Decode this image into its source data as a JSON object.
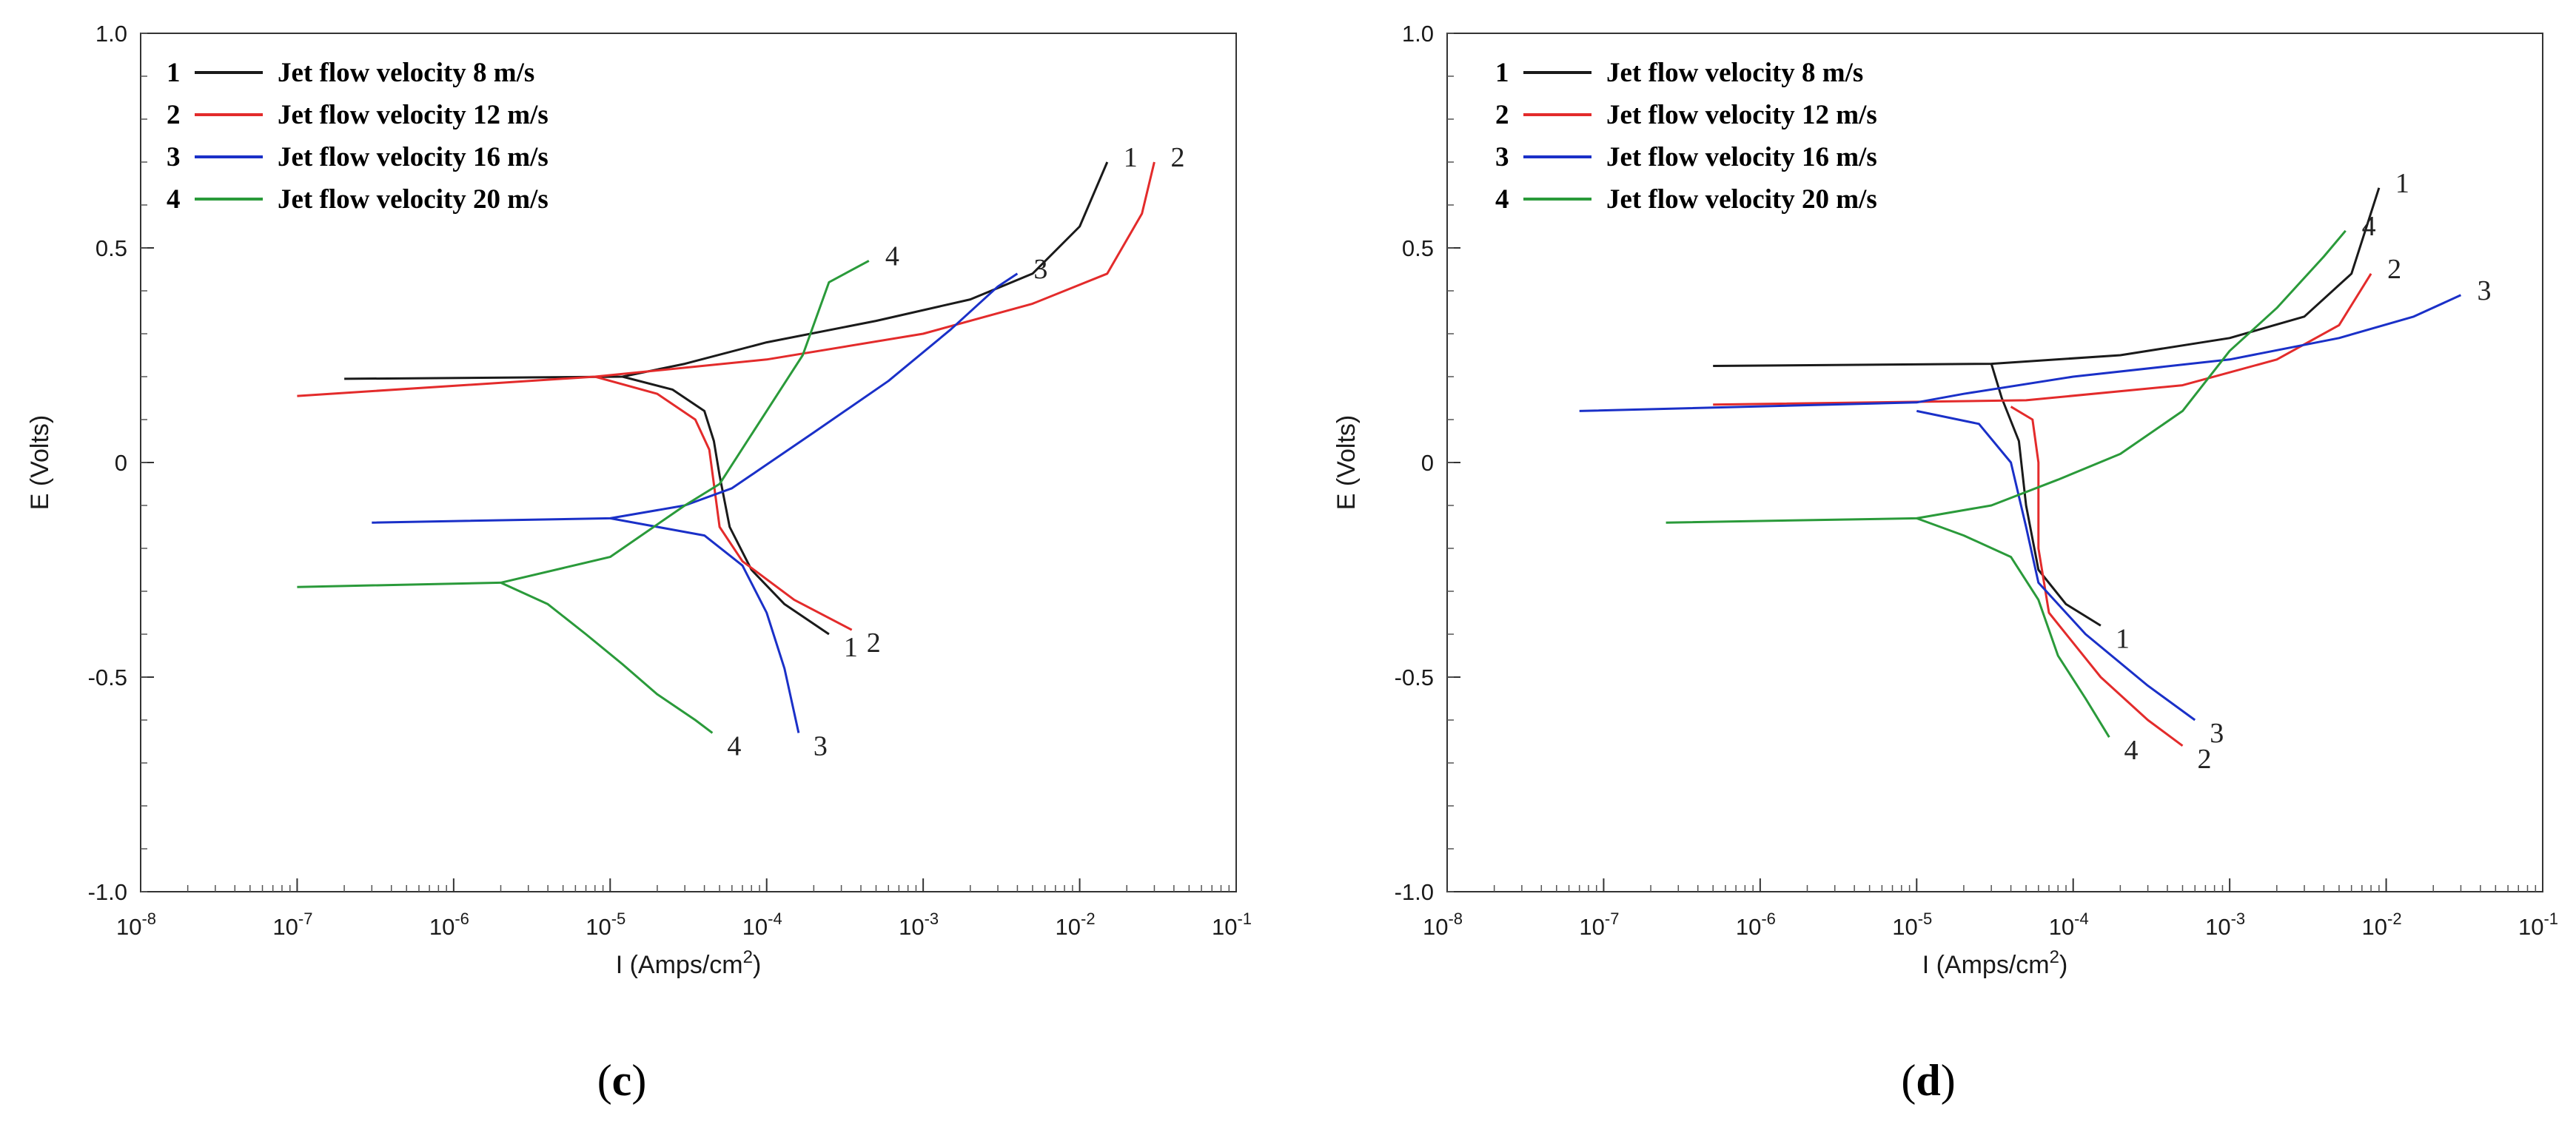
{
  "chart_data": [
    {
      "type": "line",
      "panel_label": "c",
      "xlabel": "I (Amps/cm",
      "xlabel_sup": "2",
      "xlabel_close": ")",
      "ylabel": "E (Volts)",
      "xscale": "log",
      "xlim_exp": [
        -8,
        -1
      ],
      "ylim": [
        -1.0,
        1.0
      ],
      "x_ticks": [
        "-8",
        "-7",
        "-6",
        "-5",
        "-4",
        "-3",
        "-2",
        "-1"
      ],
      "y_ticks": [
        "1.0",
        "0.5",
        "0",
        "-0.5",
        "-1.0"
      ],
      "legend_position": "top-left",
      "series": [
        {
          "id": "1",
          "name": "Jet flow velocity 8 m/s",
          "color": "#1a1a1a",
          "label_anodic": "1",
          "label_cathodic": "1",
          "anodic": [
            [
              2e-07,
              0.195
            ],
            [
              1.2e-05,
              0.2
            ],
            [
              3e-05,
              0.23
            ],
            [
              0.0001,
              0.28
            ],
            [
              0.0005,
              0.33
            ],
            [
              0.002,
              0.38
            ],
            [
              0.005,
              0.44
            ],
            [
              0.01,
              0.55
            ],
            [
              0.015,
              0.7
            ]
          ],
          "cathodic": [
            [
              1.2e-05,
              0.2
            ],
            [
              2.5e-05,
              0.17
            ],
            [
              4e-05,
              0.12
            ],
            [
              4.6e-05,
              0.05
            ],
            [
              5e-05,
              -0.03
            ],
            [
              5.8e-05,
              -0.15
            ],
            [
              8e-05,
              -0.25
            ],
            [
              0.00013,
              -0.33
            ],
            [
              0.00025,
              -0.4
            ]
          ]
        },
        {
          "id": "2",
          "name": "Jet flow velocity 12 m/s",
          "color": "#e32b2b",
          "label_anodic": "2",
          "label_cathodic": "2",
          "anodic": [
            [
              1e-07,
              0.155
            ],
            [
              8e-06,
              0.2
            ],
            [
              0.0001,
              0.24
            ],
            [
              0.001,
              0.3
            ],
            [
              0.005,
              0.37
            ],
            [
              0.015,
              0.44
            ],
            [
              0.025,
              0.58
            ],
            [
              0.03,
              0.7
            ]
          ],
          "cathodic": [
            [
              8e-06,
              0.2
            ],
            [
              2e-05,
              0.16
            ],
            [
              3.5e-05,
              0.1
            ],
            [
              4.3e-05,
              0.03
            ],
            [
              4.6e-05,
              -0.05
            ],
            [
              5e-05,
              -0.15
            ],
            [
              7e-05,
              -0.23
            ],
            [
              0.00015,
              -0.32
            ],
            [
              0.00035,
              -0.39
            ]
          ]
        },
        {
          "id": "3",
          "name": "Jet flow velocity 16 m/s",
          "color": "#1a30c8",
          "label_anodic": "3",
          "label_cathodic": "3",
          "anodic": [
            [
              3e-07,
              -0.14
            ],
            [
              1e-05,
              -0.13
            ],
            [
              3e-05,
              -0.1
            ],
            [
              6e-05,
              -0.06
            ],
            [
              0.0002,
              0.07
            ],
            [
              0.0006,
              0.19
            ],
            [
              0.0015,
              0.31
            ],
            [
              0.003,
              0.41
            ],
            [
              0.004,
              0.44
            ]
          ],
          "cathodic": [
            [
              1e-05,
              -0.13
            ],
            [
              2e-05,
              -0.15
            ],
            [
              4e-05,
              -0.17
            ],
            [
              7e-05,
              -0.24
            ],
            [
              0.0001,
              -0.35
            ],
            [
              0.00013,
              -0.48
            ],
            [
              0.00016,
              -0.63
            ]
          ]
        },
        {
          "id": "4",
          "name": "Jet flow velocity 20 m/s",
          "color": "#2a9a3a",
          "label_anodic": "4",
          "label_cathodic": "4",
          "anodic": [
            [
              1e-07,
              -0.29
            ],
            [
              2e-06,
              -0.28
            ],
            [
              1e-05,
              -0.22
            ],
            [
              3e-05,
              -0.1
            ],
            [
              5e-05,
              -0.05
            ],
            [
              0.0001,
              0.12
            ],
            [
              0.00017,
              0.25
            ],
            [
              0.00025,
              0.42
            ],
            [
              0.00045,
              0.47
            ]
          ],
          "cathodic": [
            [
              2e-06,
              -0.28
            ],
            [
              4e-06,
              -0.33
            ],
            [
              7e-06,
              -0.4
            ],
            [
              1.2e-05,
              -0.47
            ],
            [
              2e-05,
              -0.54
            ],
            [
              3.5e-05,
              -0.6
            ],
            [
              4.5e-05,
              -0.63
            ]
          ]
        }
      ]
    },
    {
      "type": "line",
      "panel_label": "d",
      "xlabel": "I (Amps/cm",
      "xlabel_sup": "2",
      "xlabel_close": ")",
      "ylabel": "E (Volts)",
      "xscale": "log",
      "xlim_exp": [
        -8,
        -1
      ],
      "ylim": [
        -1.0,
        1.0
      ],
      "x_ticks": [
        "-8",
        "-7",
        "-6",
        "-5",
        "-4",
        "-3",
        "-2",
        "-1"
      ],
      "y_ticks": [
        "1.0",
        "0.5",
        "0",
        "-0.5",
        "-1.0"
      ],
      "legend_position": "top-left",
      "series": [
        {
          "id": "1",
          "name": "Jet flow velocity 8 m/s",
          "color": "#1a1a1a",
          "label_anodic": "1",
          "label_cathodic": "1",
          "anodic": [
            [
              5e-07,
              0.225
            ],
            [
              3e-05,
              0.23
            ],
            [
              0.0002,
              0.25
            ],
            [
              0.001,
              0.29
            ],
            [
              0.003,
              0.34
            ],
            [
              0.006,
              0.44
            ],
            [
              0.009,
              0.64
            ]
          ],
          "cathodic": [
            [
              3e-05,
              0.23
            ],
            [
              3.5e-05,
              0.15
            ],
            [
              4.5e-05,
              0.05
            ],
            [
              5e-05,
              -0.1
            ],
            [
              6e-05,
              -0.25
            ],
            [
              9e-05,
              -0.33
            ],
            [
              0.00015,
              -0.38
            ]
          ]
        },
        {
          "id": "2",
          "name": "Jet flow velocity 12 m/s",
          "color": "#e32b2b",
          "label_anodic": "2",
          "label_cathodic": "2",
          "anodic": [
            [
              5e-07,
              0.135
            ],
            [
              5e-05,
              0.145
            ],
            [
              0.0005,
              0.18
            ],
            [
              0.002,
              0.24
            ],
            [
              0.005,
              0.32
            ],
            [
              0.008,
              0.44
            ]
          ],
          "cathodic": [
            [
              4e-05,
              0.13
            ],
            [
              5.5e-05,
              0.1
            ],
            [
              6e-05,
              0.0
            ],
            [
              6e-05,
              -0.2
            ],
            [
              7e-05,
              -0.35
            ],
            [
              0.00015,
              -0.5
            ],
            [
              0.0003,
              -0.6
            ],
            [
              0.0005,
              -0.66
            ]
          ]
        },
        {
          "id": "3",
          "name": "Jet flow velocity 16 m/s",
          "color": "#1a30c8",
          "label_anodic": "3",
          "label_cathodic": "3",
          "anodic": [
            [
              7e-08,
              0.12
            ],
            [
              1e-05,
              0.14
            ],
            [
              2e-05,
              0.16
            ],
            [
              0.0001,
              0.2
            ],
            [
              0.001,
              0.24
            ],
            [
              0.005,
              0.29
            ],
            [
              0.015,
              0.34
            ],
            [
              0.03,
              0.39
            ]
          ],
          "cathodic": [
            [
              1e-05,
              0.12
            ],
            [
              2.5e-05,
              0.09
            ],
            [
              4e-05,
              0.0
            ],
            [
              5e-05,
              -0.15
            ],
            [
              6e-05,
              -0.28
            ],
            [
              0.00012,
              -0.4
            ],
            [
              0.0003,
              -0.52
            ],
            [
              0.0006,
              -0.6
            ]
          ]
        },
        {
          "id": "4",
          "name": "Jet flow velocity 20 m/s",
          "color": "#2a9a3a",
          "label_anodic": "4",
          "label_cathodic": "4",
          "anodic": [
            [
              2.5e-07,
              -0.14
            ],
            [
              1e-05,
              -0.13
            ],
            [
              3e-05,
              -0.1
            ],
            [
              8e-05,
              -0.04
            ],
            [
              0.0002,
              0.02
            ],
            [
              0.0005,
              0.12
            ],
            [
              0.001,
              0.26
            ],
            [
              0.002,
              0.36
            ],
            [
              0.004,
              0.48
            ],
            [
              0.0055,
              0.54
            ]
          ],
          "cathodic": [
            [
              1e-05,
              -0.13
            ],
            [
              2e-05,
              -0.17
            ],
            [
              4e-05,
              -0.22
            ],
            [
              6e-05,
              -0.32
            ],
            [
              8e-05,
              -0.45
            ],
            [
              0.00012,
              -0.55
            ],
            [
              0.00017,
              -0.64
            ]
          ]
        }
      ]
    }
  ]
}
